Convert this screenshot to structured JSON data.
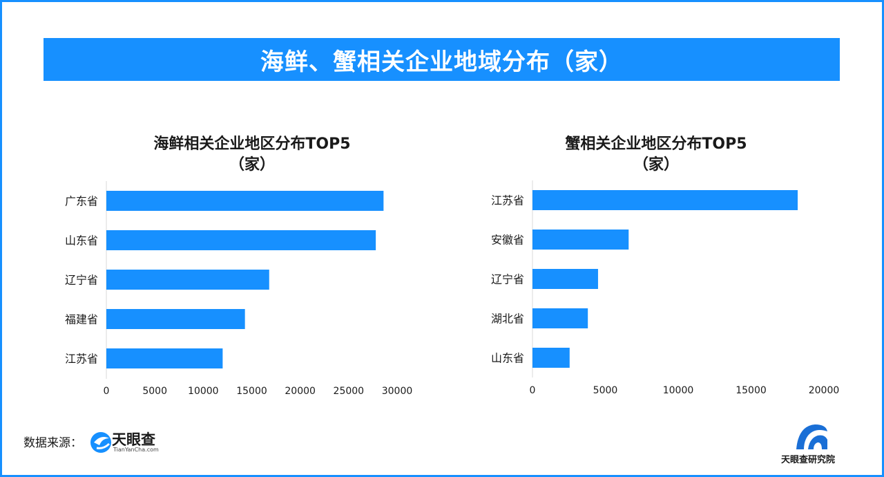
{
  "banner_title": "海鲜、蟹相关企业地域分布（家）",
  "source_label": "数据来源：",
  "source_brand": "天眼查",
  "source_url": "TianYanCha.com",
  "institute_brand": "天眼查研究院",
  "colors": {
    "accent": "#1790ff",
    "bar": "#1790ff",
    "text": "#1a1a1a"
  },
  "chart_data": [
    {
      "type": "bar",
      "orientation": "horizontal",
      "title": "海鲜相关企业地区分布TOP5",
      "subtitle": "（家）",
      "categories": [
        "广东省",
        "山东省",
        "辽宁省",
        "福建省",
        "江苏省"
      ],
      "values": [
        28600,
        27800,
        16800,
        14300,
        12000
      ],
      "xlim": [
        0,
        30000
      ],
      "xticks": [
        0,
        5000,
        10000,
        15000,
        20000,
        25000,
        30000
      ],
      "grid": false
    },
    {
      "type": "bar",
      "orientation": "horizontal",
      "title": "蟹相关企业地区分布TOP5",
      "subtitle": "（家）",
      "categories": [
        "江苏省",
        "安徽省",
        "辽宁省",
        "湖北省",
        "山东省"
      ],
      "values": [
        18200,
        6600,
        4500,
        3800,
        2550
      ],
      "xlim": [
        0,
        20000
      ],
      "xticks": [
        0,
        5000,
        10000,
        15000,
        20000
      ],
      "grid": false
    }
  ]
}
